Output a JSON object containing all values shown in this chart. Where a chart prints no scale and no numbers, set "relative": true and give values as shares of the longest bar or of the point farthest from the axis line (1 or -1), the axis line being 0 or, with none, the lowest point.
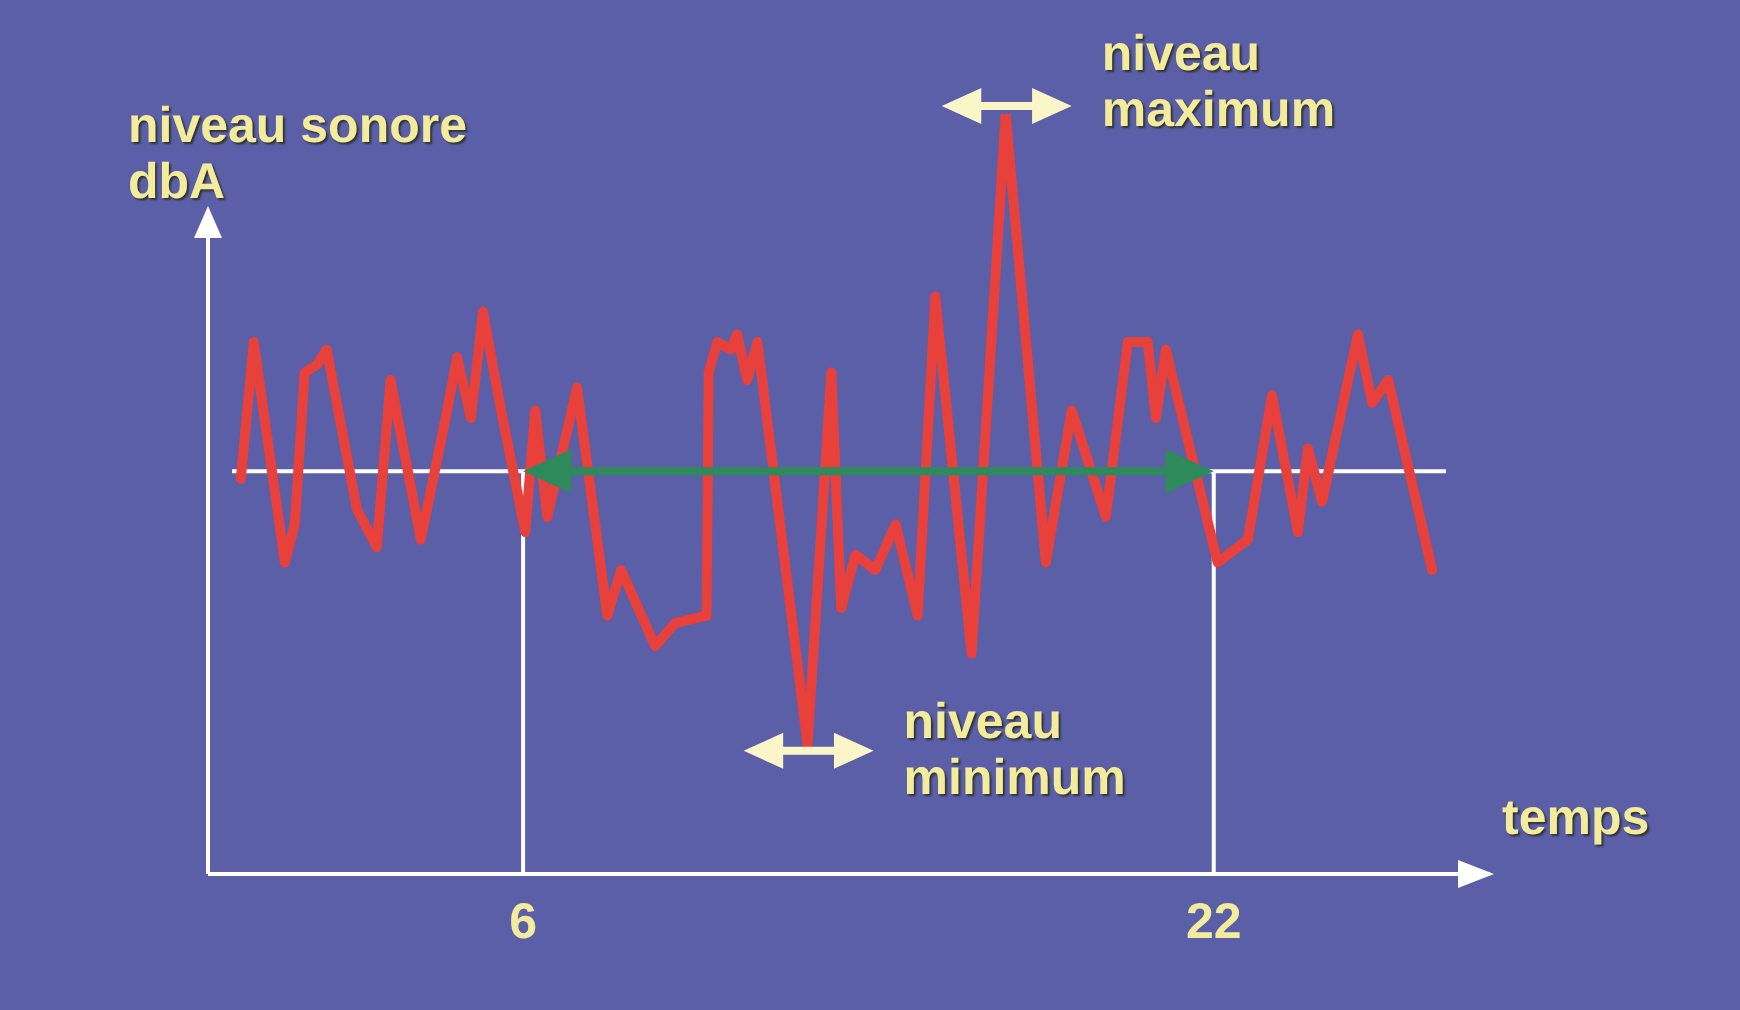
{
  "chart_data": {
    "type": "line",
    "relative": true,
    "xlabel": "temps",
    "ylabel": "niveau sonore dbA",
    "x": [
      -0.54,
      -0.24,
      0.48,
      0.71,
      0.94,
      1.22,
      1.45,
      2.15,
      2.61,
      2.93,
      3.63,
      4.24,
      4.47,
      4.79,
      5.07,
      5.49,
      6.05,
      6.28,
      6.56,
      7.25,
      7.95,
      8.27,
      9.06,
      9.52,
      10.25,
      10.3,
      10.5,
      10.82,
      10.96,
      11.19,
      11.43,
      12.59,
      13.14,
      13.37,
      13.7,
      14.16,
      14.63,
      15.14,
      15.55,
      16.39,
      17.18,
      18.11,
      18.71,
      19.5,
      20.01,
      20.47,
      20.66,
      20.89,
      22.09,
      22.79,
      23.35,
      23.95,
      24.18,
      24.51,
      25.34,
      25.67,
      26.04,
      27.06
    ],
    "series": [
      {
        "color": "#e8403a",
        "values": [
          0.52,
          0.7,
          0.41,
          0.46,
          0.66,
          0.67,
          0.69,
          0.48,
          0.43,
          0.65,
          0.44,
          0.61,
          0.68,
          0.6,
          0.74,
          0.61,
          0.45,
          0.61,
          0.47,
          0.64,
          0.34,
          0.4,
          0.3,
          0.33,
          0.34,
          0.66,
          0.7,
          0.69,
          0.71,
          0.65,
          0.7,
          0.17,
          0.66,
          0.35,
          0.42,
          0.4,
          0.46,
          0.34,
          0.76,
          0.29,
          1.0,
          0.41,
          0.61,
          0.47,
          0.7,
          0.7,
          0.6,
          0.69,
          0.41,
          0.44,
          0.63,
          0.45,
          0.56,
          0.49,
          0.71,
          0.62,
          0.65,
          0.4
        ]
      }
    ],
    "xlim": [
      -1.3,
      28.4
    ],
    "xticks": [
      6,
      22
    ],
    "ref_lines": [
      {
        "axis": "y",
        "value": 0.53,
        "color": "#ffffff"
      },
      {
        "axis": "x",
        "value": 6,
        "color": "#ffffff"
      },
      {
        "axis": "x",
        "value": 22,
        "color": "#ffffff"
      }
    ],
    "annotations": [
      {
        "text": "niveau maximum",
        "x": 17.18,
        "y": 1
      },
      {
        "text": "niveau minimum",
        "x": 12.59,
        "y": 0.17
      }
    ],
    "grid": false,
    "legend": false,
    "marker": "none",
    "line_style": "solid"
  }
}
